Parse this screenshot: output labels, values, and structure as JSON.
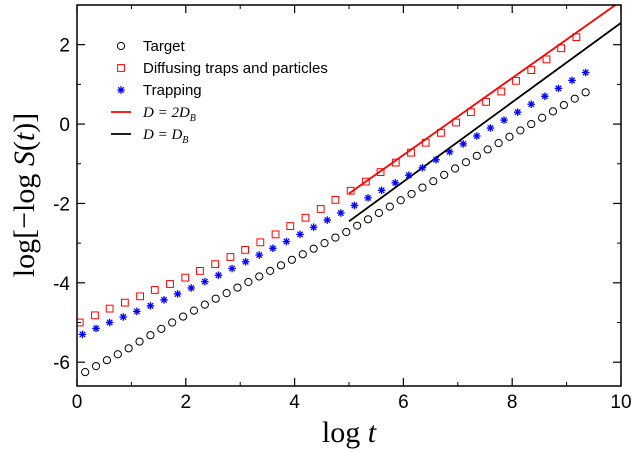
{
  "chart_data": {
    "type": "scatter",
    "xlabel": "log t",
    "ylabel": "log[−log S(t)]",
    "xlim": [
      0,
      10
    ],
    "ylim": [
      -6.6,
      3.0
    ],
    "xticks": [
      0,
      2,
      4,
      6,
      8,
      10
    ],
    "yticks": [
      -6,
      -4,
      -2,
      0,
      2
    ],
    "grid": false,
    "legend_position": "top-left",
    "series": [
      {
        "name": "Target",
        "marker": "circle",
        "color": "#000000",
        "x": [
          0.15,
          0.35,
          0.55,
          0.75,
          0.95,
          1.15,
          1.35,
          1.55,
          1.75,
          1.95,
          2.15,
          2.35,
          2.55,
          2.75,
          2.95,
          3.15,
          3.35,
          3.55,
          3.75,
          3.95,
          4.15,
          4.35,
          4.55,
          4.75,
          4.95,
          5.15,
          5.35,
          5.55,
          5.75,
          5.95,
          6.15,
          6.35,
          6.55,
          6.75,
          6.95,
          7.15,
          7.35,
          7.55,
          7.75,
          7.95,
          8.15,
          8.35,
          8.55,
          8.75,
          8.95,
          9.15,
          9.35
        ],
        "y": [
          -6.25,
          -6.1,
          -5.95,
          -5.8,
          -5.65,
          -5.48,
          -5.32,
          -5.16,
          -5.0,
          -4.85,
          -4.7,
          -4.55,
          -4.4,
          -4.26,
          -4.12,
          -3.98,
          -3.84,
          -3.7,
          -3.56,
          -3.42,
          -3.28,
          -3.14,
          -3.0,
          -2.86,
          -2.72,
          -2.56,
          -2.4,
          -2.24,
          -2.08,
          -1.92,
          -1.76,
          -1.6,
          -1.44,
          -1.28,
          -1.12,
          -0.96,
          -0.8,
          -0.64,
          -0.48,
          -0.32,
          -0.16,
          0.0,
          0.16,
          0.32,
          0.48,
          0.64,
          0.8
        ]
      },
      {
        "name": "Diffusing traps and particles",
        "marker": "square",
        "color": "#ff0000",
        "x": [
          0.05,
          0.33,
          0.6,
          0.88,
          1.16,
          1.43,
          1.71,
          1.99,
          2.26,
          2.54,
          2.82,
          3.09,
          3.37,
          3.65,
          3.92,
          4.2,
          4.48,
          4.75,
          5.03,
          5.31,
          5.58,
          5.86,
          6.14,
          6.41,
          6.69,
          6.97,
          7.24,
          7.52,
          7.8,
          8.07,
          8.35,
          8.63,
          8.9,
          9.18
        ],
        "y": [
          -5.0,
          -4.82,
          -4.65,
          -4.5,
          -4.34,
          -4.18,
          -4.03,
          -3.87,
          -3.7,
          -3.53,
          -3.35,
          -3.17,
          -2.98,
          -2.78,
          -2.57,
          -2.36,
          -2.14,
          -1.91,
          -1.68,
          -1.45,
          -1.21,
          -0.97,
          -0.72,
          -0.47,
          -0.22,
          0.04,
          0.3,
          0.56,
          0.82,
          1.09,
          1.36,
          1.63,
          1.91,
          2.19
        ]
      },
      {
        "name": "Trapping",
        "marker": "asterisk",
        "color": "#0000ff",
        "x": [
          0.1,
          0.35,
          0.6,
          0.85,
          1.1,
          1.35,
          1.6,
          1.85,
          2.1,
          2.35,
          2.6,
          2.85,
          3.1,
          3.35,
          3.6,
          3.85,
          4.1,
          4.35,
          4.6,
          4.85,
          5.1,
          5.35,
          5.6,
          5.85,
          6.1,
          6.35,
          6.6,
          6.85,
          7.1,
          7.35,
          7.6,
          7.85,
          8.1,
          8.35,
          8.6,
          8.85,
          9.1,
          9.35
        ],
        "y": [
          -5.3,
          -5.15,
          -5.0,
          -4.86,
          -4.72,
          -4.58,
          -4.43,
          -4.28,
          -4.13,
          -3.97,
          -3.81,
          -3.64,
          -3.47,
          -3.3,
          -3.13,
          -2.96,
          -2.78,
          -2.6,
          -2.42,
          -2.24,
          -2.05,
          -1.86,
          -1.67,
          -1.48,
          -1.29,
          -1.1,
          -0.9,
          -0.7,
          -0.5,
          -0.3,
          -0.1,
          0.1,
          0.3,
          0.5,
          0.7,
          0.9,
          1.1,
          1.3
        ]
      }
    ],
    "lines": [
      {
        "name": "D = 2D_B",
        "label_main": "D = 2D",
        "label_sub": "B",
        "color": "#ff0000",
        "x": [
          5.0,
          10.0
        ],
        "y": [
          -1.75,
          3.1
        ]
      },
      {
        "name": "D = D_B",
        "label_main": "D = D",
        "label_sub": "B",
        "color": "#000000",
        "x": [
          5.0,
          10.0
        ],
        "y": [
          -2.45,
          2.55
        ]
      }
    ]
  }
}
